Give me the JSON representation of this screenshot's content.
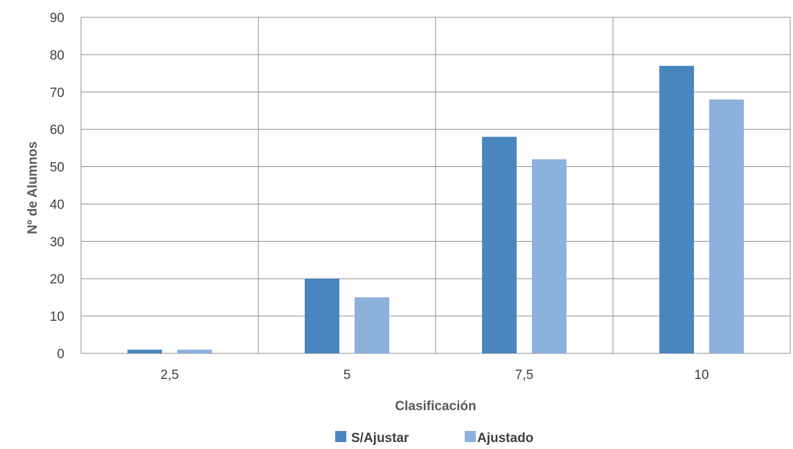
{
  "chart_data": {
    "type": "bar",
    "categories": [
      "2,5",
      "5",
      "7,5",
      "10"
    ],
    "series": [
      {
        "name": "S/Ajustar",
        "values": [
          1,
          20,
          58,
          77
        ],
        "color": "#4a86be"
      },
      {
        "name": "Ajustado",
        "values": [
          1,
          15,
          52,
          68
        ],
        "color": "#8cb1dd"
      }
    ],
    "xlabel": "Clasificación",
    "ylabel": "Nº de Alumnos",
    "ylim": [
      0,
      90
    ],
    "yticks": [
      0,
      10,
      20,
      30,
      40,
      50,
      60,
      70,
      80,
      90
    ],
    "grid": true,
    "legend_position": "bottom"
  }
}
